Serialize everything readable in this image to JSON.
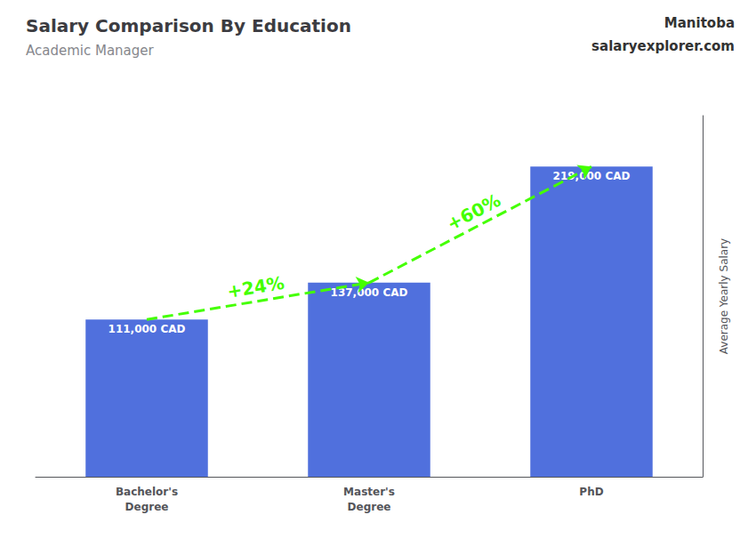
{
  "chart_data": {
    "type": "bar",
    "title": "Salary Comparison By Education",
    "subtitle": "Academic Manager",
    "categories": [
      "Bachelor's\nDegree",
      "Master's\nDegree",
      "PhD"
    ],
    "values": [
      111000,
      137000,
      219000
    ],
    "value_labels": [
      "111,000 CAD",
      "137,000 CAD",
      "219,000 CAD"
    ],
    "data_labels": true,
    "ylabel": "Average Yearly Salary",
    "ylim": [
      0,
      255000
    ],
    "yticks": [],
    "tick_labels": "x",
    "grid": false,
    "annotations": [
      {
        "text": "Manitoba"
      },
      {
        "text": "salaryexplorer.com"
      },
      {
        "text": "+24%",
        "from": "Bachelor's\nDegree",
        "to": "Master's\nDegree",
        "color": "#44FF00"
      },
      {
        "text": "+60%",
        "from": "Master's\nDegree",
        "to": "PhD",
        "color": "#44FF00"
      }
    ]
  }
}
